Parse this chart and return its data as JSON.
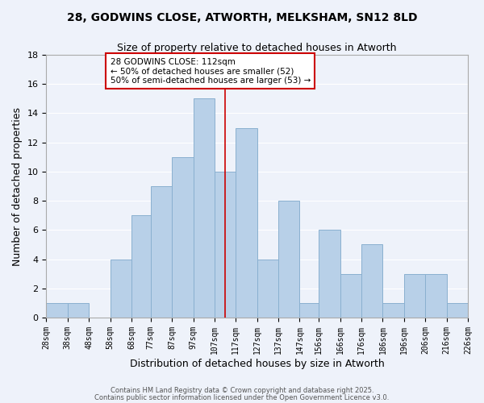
{
  "title": "28, GODWINS CLOSE, ATWORTH, MELKSHAM, SN12 8LD",
  "subtitle": "Size of property relative to detached houses in Atworth",
  "xlabel": "Distribution of detached houses by size in Atworth",
  "ylabel": "Number of detached properties",
  "bar_color": "#b8d0e8",
  "bar_edge_color": "#8ab0d0",
  "background_color": "#eef2fa",
  "grid_color": "#ffffff",
  "vline_x": 112,
  "vline_color": "#cc0000",
  "bins": [
    28,
    38,
    48,
    58,
    68,
    77,
    87,
    97,
    107,
    117,
    127,
    137,
    147,
    156,
    166,
    176,
    186,
    196,
    206,
    216,
    226
  ],
  "counts": [
    1,
    1,
    0,
    4,
    7,
    9,
    11,
    15,
    10,
    13,
    4,
    8,
    1,
    6,
    3,
    5,
    1,
    3,
    3,
    1
  ],
  "tick_labels": [
    "28sqm",
    "38sqm",
    "48sqm",
    "58sqm",
    "68sqm",
    "77sqm",
    "87sqm",
    "97sqm",
    "107sqm",
    "117sqm",
    "127sqm",
    "137sqm",
    "147sqm",
    "156sqm",
    "166sqm",
    "176sqm",
    "186sqm",
    "196sqm",
    "206sqm",
    "216sqm",
    "226sqm"
  ],
  "yticks": [
    0,
    2,
    4,
    6,
    8,
    10,
    12,
    14,
    16,
    18
  ],
  "ylim": [
    0,
    18
  ],
  "annotation_title": "28 GODWINS CLOSE: 112sqm",
  "annotation_line1": "← 50% of detached houses are smaller (52)",
  "annotation_line2": "50% of semi-detached houses are larger (53) →",
  "annotation_box_color": "#ffffff",
  "annotation_edge_color": "#cc0000",
  "footer1": "Contains HM Land Registry data © Crown copyright and database right 2025.",
  "footer2": "Contains public sector information licensed under the Open Government Licence v3.0."
}
